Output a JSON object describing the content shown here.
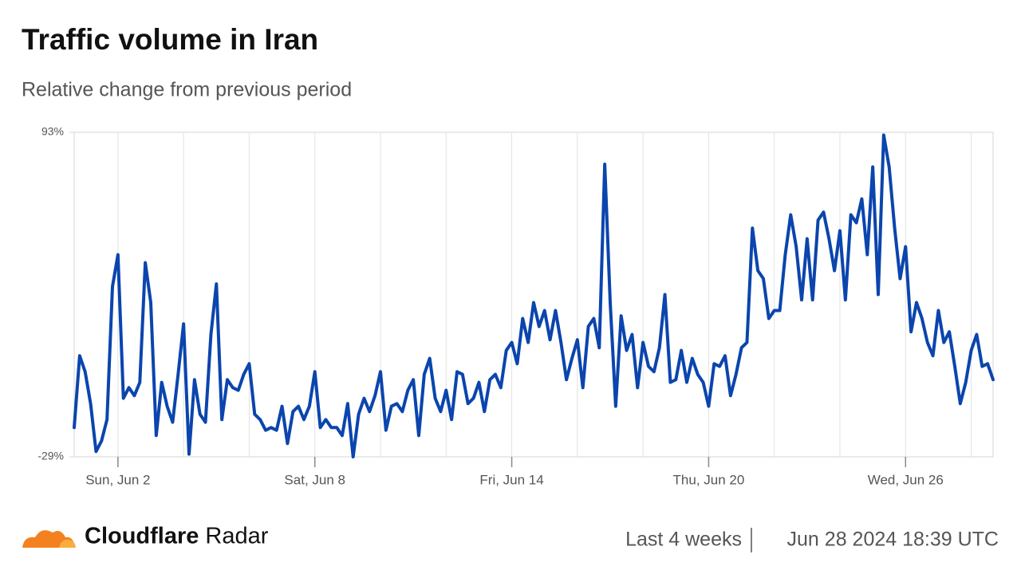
{
  "chart_data": {
    "type": "line",
    "title": "Traffic volume in Iran",
    "subtitle": "Relative change from previous period",
    "xlim": [
      0,
      168
    ],
    "xticks": [
      {
        "value": 8,
        "label": "Sun, Jun 2"
      },
      {
        "value": 44,
        "label": "Sat, Jun 8"
      },
      {
        "value": 80,
        "label": "Fri, Jun 14"
      },
      {
        "value": 116,
        "label": "Thu, Jun 20"
      },
      {
        "value": 152,
        "label": "Wed, Jun 26"
      }
    ],
    "ylim": [
      -29,
      93
    ],
    "yticks": [
      {
        "value": -29,
        "label": "-29%"
      },
      {
        "value": 93,
        "label": "93%"
      }
    ],
    "grid": true,
    "series": [
      {
        "color": "#0b45ad",
        "values": [
          -18,
          9,
          3,
          -9,
          -27,
          -23,
          -15,
          35,
          47,
          -7,
          -3,
          -6,
          -1,
          44,
          29,
          -21,
          -1,
          -10,
          -16,
          2,
          21,
          -28,
          0,
          -13,
          -16,
          17,
          36,
          -15,
          0,
          -3,
          -4,
          2,
          6,
          -13,
          -15,
          -19,
          -18,
          -19,
          -10,
          -24,
          -12,
          -10,
          -15,
          -10,
          3,
          -18,
          -15,
          -18,
          -18,
          -21,
          -9,
          -29,
          -13,
          -7,
          -12,
          -6,
          3,
          -19,
          -10,
          -9,
          -12,
          -4,
          0,
          -21,
          2,
          8,
          -7,
          -12,
          -4,
          -15,
          3,
          2,
          -9,
          -7,
          -1,
          -12,
          0,
          2,
          -3,
          11,
          14,
          6,
          23,
          14,
          29,
          20,
          26,
          15,
          26,
          14,
          0,
          8,
          15,
          -3,
          20,
          23,
          12,
          81,
          29,
          -10,
          24,
          11,
          17,
          -3,
          14,
          5,
          3,
          12,
          32,
          -1,
          0,
          11,
          -1,
          8,
          2,
          -1,
          -10,
          6,
          5,
          9,
          -6,
          2,
          12,
          14,
          57,
          41,
          38,
          23,
          26,
          26,
          47,
          62,
          50,
          30,
          53,
          30,
          60,
          63,
          53,
          41,
          56,
          30,
          62,
          59,
          68,
          47,
          80,
          32,
          92,
          80,
          57,
          38,
          50,
          18,
          29,
          23,
          14,
          9,
          26,
          14,
          18,
          5,
          -9,
          -1,
          11,
          17,
          5,
          6,
          0
        ]
      }
    ]
  },
  "footer": {
    "brand": "Cloudflare",
    "product": "Radar",
    "period": "Last 4 weeks",
    "timestamp": "Jun 28 2024 18:39 UTC"
  }
}
